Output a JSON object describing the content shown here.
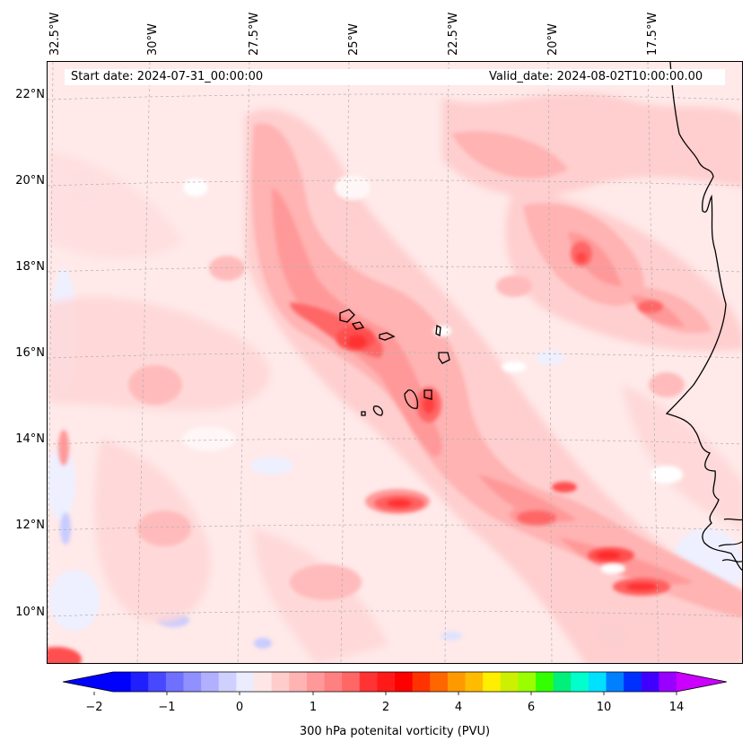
{
  "map": {
    "header": {
      "start_date": "Start date: 2024-07-31_00:00:00",
      "valid_date": "Valid_date: 2024-08-02T10:00:00.00"
    },
    "lon_labels": [
      "32.5°W",
      "30°W",
      "27.5°W",
      "25°W",
      "22.5°W",
      "20°W",
      "17.5°W"
    ],
    "lat_labels": [
      "22°N",
      "20°N",
      "18°N",
      "16°N",
      "14°N",
      "12°N",
      "10°N"
    ],
    "colors": {
      "coastline": "#000000",
      "gridline": "#b0b0b0"
    }
  },
  "colorbar": {
    "label": "300 hPa potenital vorticity (PVU)",
    "ticks": [
      "−2",
      "−1",
      "0",
      "1",
      "2",
      "4",
      "6",
      "10",
      "14"
    ],
    "colors": [
      "#0000ff",
      "#2020ff",
      "#4848ff",
      "#7070ff",
      "#9090ff",
      "#b0b0ff",
      "#d0d0ff",
      "#ececff",
      "#ffe6e6",
      "#ffcccc",
      "#ffb3b3",
      "#ff9999",
      "#ff8080",
      "#ff6666",
      "#ff3333",
      "#ff1a1a",
      "#ff0000",
      "#ff3300",
      "#ff6600",
      "#ff9900",
      "#ffbb00",
      "#ffee00",
      "#ccf000",
      "#99ff00",
      "#33ff00",
      "#00f07a",
      "#00ffcc",
      "#00e0ff",
      "#0080ff",
      "#0030ff",
      "#4000ff",
      "#9900ff"
    ],
    "under_color": "#0000ff",
    "over_color": "#cc00ff"
  }
}
